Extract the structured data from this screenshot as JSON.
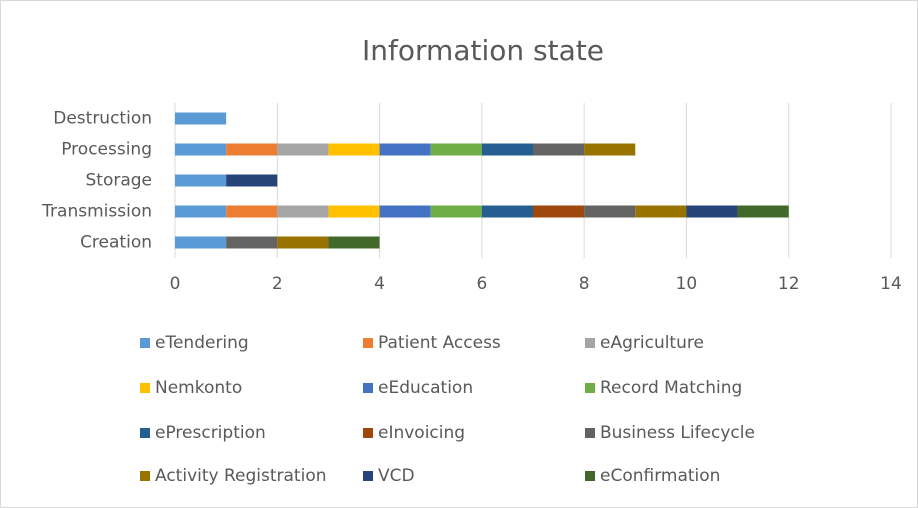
{
  "chart_data": {
    "type": "bar",
    "orientation": "horizontal",
    "stacked": true,
    "title": "Information state",
    "categories": [
      "Creation",
      "Transmission",
      "Storage",
      "Processing",
      "Destruction"
    ],
    "series": [
      {
        "name": "eTendering",
        "color": "#5b9bd5",
        "values": [
          1,
          1,
          1,
          1,
          1
        ]
      },
      {
        "name": "Patient Access",
        "color": "#ed7d31",
        "values": [
          0,
          1,
          0,
          1,
          0
        ]
      },
      {
        "name": "eAgriculture",
        "color": "#a5a5a5",
        "values": [
          0,
          1,
          0,
          1,
          0
        ]
      },
      {
        "name": "Nemkonto",
        "color": "#ffc000",
        "values": [
          0,
          1,
          0,
          1,
          0
        ]
      },
      {
        "name": "eEducation",
        "color": "#4472c4",
        "values": [
          0,
          1,
          0,
          1,
          0
        ]
      },
      {
        "name": "Record Matching",
        "color": "#70ad47",
        "values": [
          0,
          1,
          0,
          1,
          0
        ]
      },
      {
        "name": "ePrescription",
        "color": "#255e91",
        "values": [
          0,
          1,
          0,
          1,
          0
        ]
      },
      {
        "name": "eInvoicing",
        "color": "#9e480e",
        "values": [
          0,
          1,
          0,
          0,
          0
        ]
      },
      {
        "name": "Business Lifecycle",
        "color": "#636363",
        "values": [
          1,
          1,
          0,
          1,
          0
        ]
      },
      {
        "name": "Activity Registration",
        "color": "#997300",
        "values": [
          1,
          1,
          0,
          1,
          0
        ]
      },
      {
        "name": "VCD",
        "color": "#264478",
        "values": [
          0,
          1,
          1,
          0,
          0
        ]
      },
      {
        "name": "eConfirmation",
        "color": "#43682b",
        "values": [
          1,
          1,
          0,
          0,
          0
        ]
      }
    ],
    "xlim": [
      0,
      14
    ],
    "xticks": [
      0,
      2,
      4,
      6,
      8,
      10,
      12,
      14
    ],
    "grid": true,
    "legend": "bottom"
  }
}
